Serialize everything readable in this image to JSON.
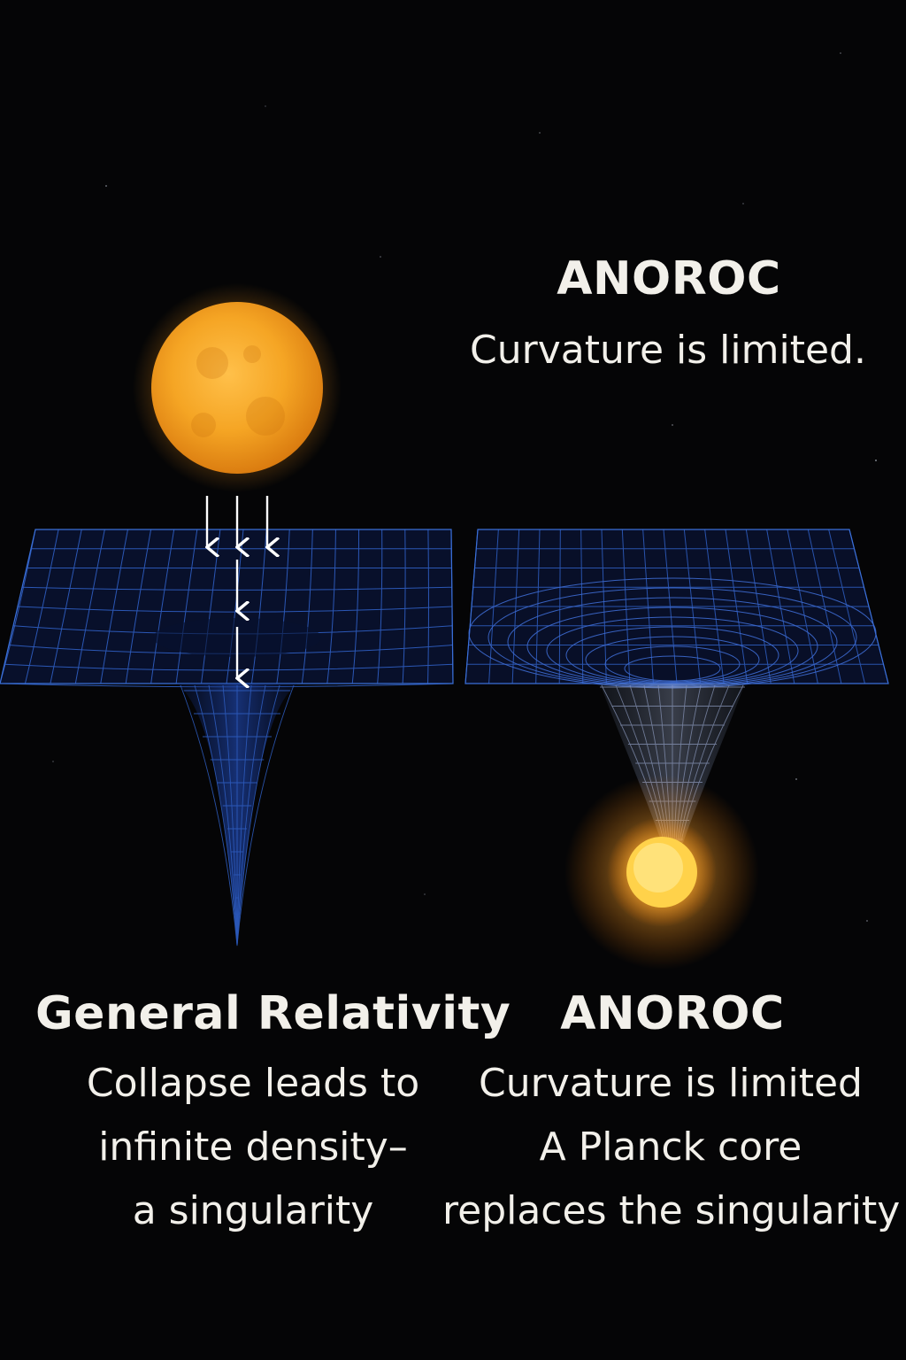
{
  "top_label": {
    "title": "ANOROC",
    "subtitle": "Curvature is limited."
  },
  "left_panel": {
    "title": "General Relativity",
    "lines": [
      "Collapse leads to",
      "infinite density–",
      "a singularity"
    ]
  },
  "right_panel": {
    "title": "ANOROC",
    "lines": [
      "Curvature is limited",
      "A Planck core",
      "replaces the singularity"
    ]
  },
  "colors": {
    "background": "#050506",
    "grid": "#2f5fc4",
    "star": "#f5a524",
    "core_glow": "#ffb43a",
    "text": "#f2f0ea"
  }
}
